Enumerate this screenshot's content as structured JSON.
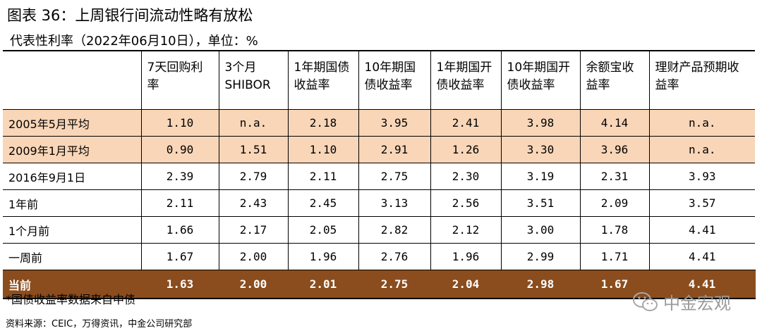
{
  "title": "图表 36：上周银行间流动性略有放松",
  "subtitle": "代表性利率（2022年06月10日），单位：%",
  "table": {
    "headers": [
      "",
      "7天回购利率",
      "3个月SHIBOR",
      "1年期国债收益率",
      "10年期国债收益率",
      "1年期国开债收益率",
      "10年期国开债收益率",
      "余额宝收益率",
      "理财产品预期收益率"
    ],
    "rows": [
      {
        "label": "2005年5月平均",
        "values": [
          "1.10",
          "n.a.",
          "2.18",
          "3.95",
          "2.41",
          "3.98",
          "4.14",
          "n.a."
        ]
      },
      {
        "label": "2009年1月平均",
        "values": [
          "0.90",
          "1.51",
          "1.10",
          "2.91",
          "1.26",
          "3.30",
          "3.96",
          "n.a."
        ]
      },
      {
        "label": "2016年9月1日",
        "values": [
          "2.39",
          "2.79",
          "2.11",
          "2.75",
          "2.30",
          "3.19",
          "2.31",
          "3.93"
        ]
      },
      {
        "label": "1年前",
        "values": [
          "2.11",
          "2.43",
          "2.45",
          "3.13",
          "2.56",
          "3.51",
          "2.09",
          "3.57"
        ]
      },
      {
        "label": "1个月前",
        "values": [
          "1.66",
          "2.17",
          "2.05",
          "2.82",
          "2.12",
          "3.00",
          "1.78",
          "4.41"
        ]
      },
      {
        "label": "一周前",
        "values": [
          "1.67",
          "2.00",
          "1.96",
          "2.76",
          "1.96",
          "2.99",
          "1.71",
          "4.41"
        ]
      },
      {
        "label": "当前",
        "values": [
          "1.63",
          "2.00",
          "2.01",
          "2.75",
          "2.04",
          "2.98",
          "1.67",
          "4.41"
        ]
      }
    ]
  },
  "note": "*国债收益率数据来自中债",
  "source": "资料来源：CEIC，万得资讯，中金公司研究部",
  "logo": {
    "text": "中金宏观",
    "icon": "wechat-icon"
  },
  "colors": {
    "highlight": "#f9d6b8",
    "current": "#8b4d1e"
  }
}
